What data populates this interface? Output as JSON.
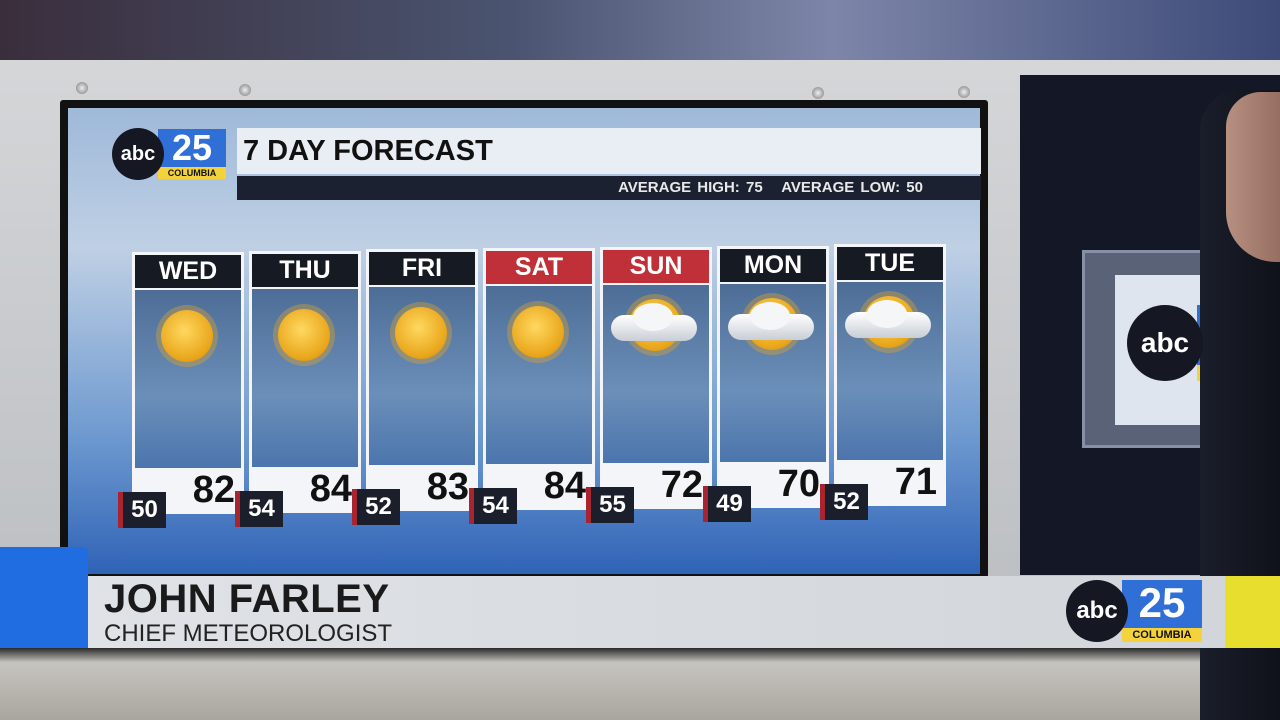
{
  "forecast": {
    "title": "7 DAY FORECAST",
    "average_high": "AVERAGE HIGH: 75",
    "average_low": "AVERAGE LOW: 50",
    "days": [
      {
        "day": "WED",
        "high": "82",
        "low": "50",
        "icon": "sunny-icon",
        "weekend": false
      },
      {
        "day": "THU",
        "high": "84",
        "low": "54",
        "icon": "sunny-icon",
        "weekend": false
      },
      {
        "day": "FRI",
        "high": "83",
        "low": "52",
        "icon": "sunny-icon",
        "weekend": false
      },
      {
        "day": "SAT",
        "high": "84",
        "low": "54",
        "icon": "sunny-icon",
        "weekend": true
      },
      {
        "day": "SUN",
        "high": "72",
        "low": "55",
        "icon": "partly-cloudy-icon",
        "weekend": true
      },
      {
        "day": "MON",
        "high": "70",
        "low": "49",
        "icon": "partly-cloudy-icon",
        "weekend": false
      },
      {
        "day": "TUE",
        "high": "71",
        "low": "52",
        "icon": "partly-cloudy-icon",
        "weekend": false
      }
    ]
  },
  "logo": {
    "abc": "abc",
    "num": "25",
    "city": "COLUMBIA"
  },
  "lower_third": {
    "name": "JOHN FARLEY",
    "role": "CHIEF METEOROLOGIST"
  },
  "colors": {
    "accent_blue": "#1f6de0",
    "accent_yellow": "#e8de2e",
    "weekend_red": "#c03038"
  }
}
